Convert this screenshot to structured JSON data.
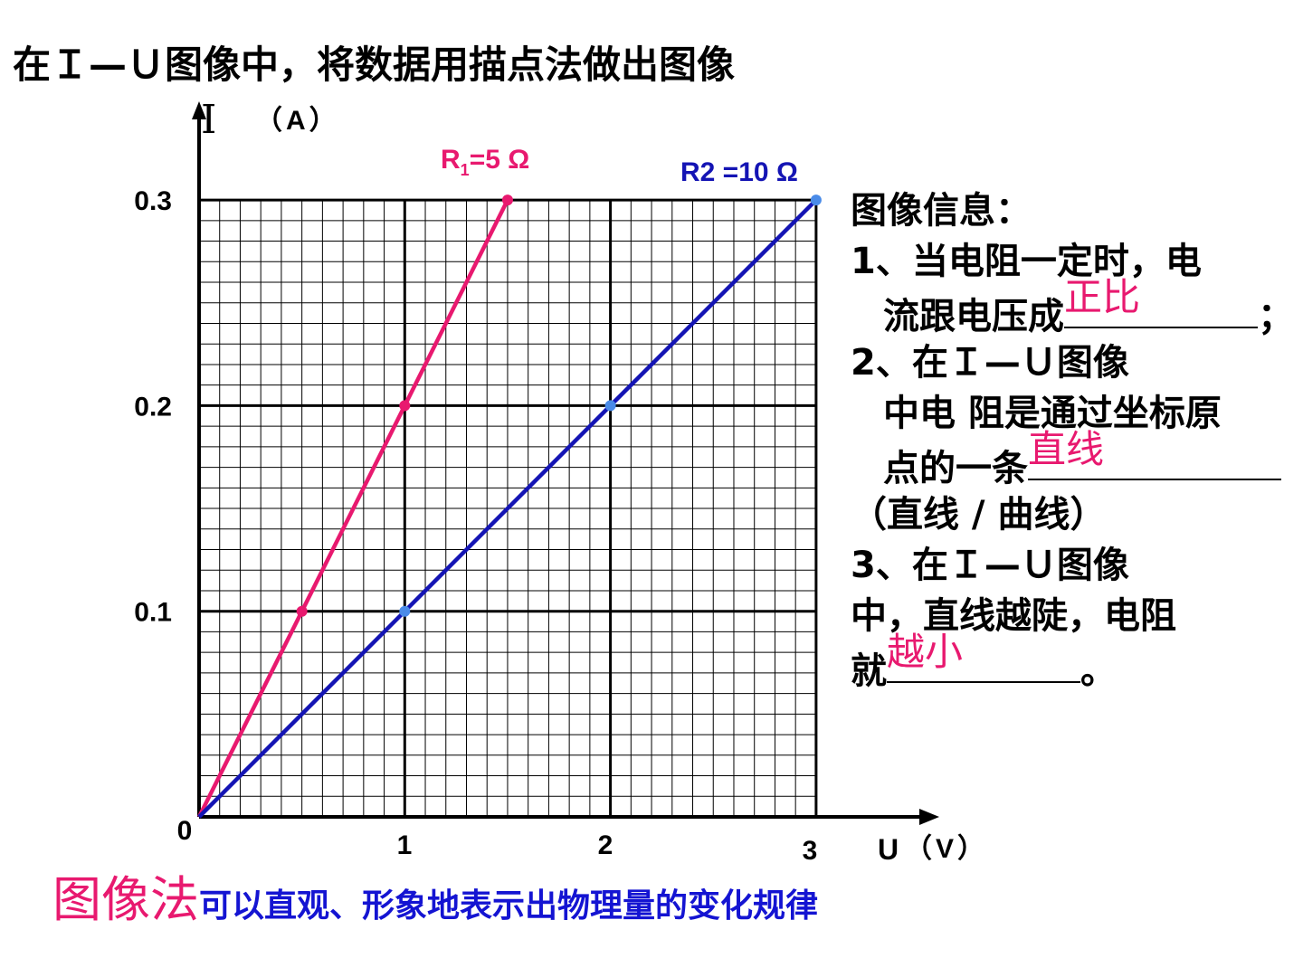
{
  "slide": {
    "title": "在Ｉ—Ｕ图像中，将数据用描点法做出图像"
  },
  "chart_data": {
    "type": "line",
    "xlabel": "U（V）",
    "ylabel": "I（A）",
    "xlim": [
      0,
      3.5
    ],
    "ylim": [
      0,
      0.3
    ],
    "x_ticks": [
      "1",
      "2",
      "3"
    ],
    "y_ticks": [
      "0.1",
      "0.2",
      "0.3"
    ],
    "origin_label": "0",
    "grid": true,
    "series": [
      {
        "name": "R1=5 Ω",
        "color": "#e8196f",
        "points": [
          [
            0,
            0
          ],
          [
            0.5,
            0.1
          ],
          [
            1,
            0.2
          ],
          [
            1.5,
            0.3
          ]
        ]
      },
      {
        "name": "R2 =10 Ω",
        "color": "#1414b4",
        "points": [
          [
            0,
            0
          ],
          [
            1,
            0.1
          ],
          [
            2,
            0.2
          ],
          [
            3,
            0.3
          ]
        ]
      }
    ]
  },
  "info": {
    "heading": "图像信息：",
    "item1_a": "1、当电阻一定时，电",
    "item1_b": "流跟电压成",
    "item1_answer": "正比",
    "item1_end": "；",
    "item2_a": "2、在Ｉ—Ｕ图像",
    "item2_b": "中电 阻是通过坐标原",
    "item2_c": "点的一条",
    "item2_answer": "直线",
    "item2_d": "（直线 / 曲线）",
    "item3_a": "3、在Ｉ—Ｕ图像",
    "item3_b": "中，直线越陡，电阻",
    "item3_c": "就",
    "item3_answer": "越小",
    "item3_end": "。"
  },
  "footer": {
    "highlight": "图像法",
    "rest": "可以直观、形象地表示出物理量的变化规律"
  }
}
